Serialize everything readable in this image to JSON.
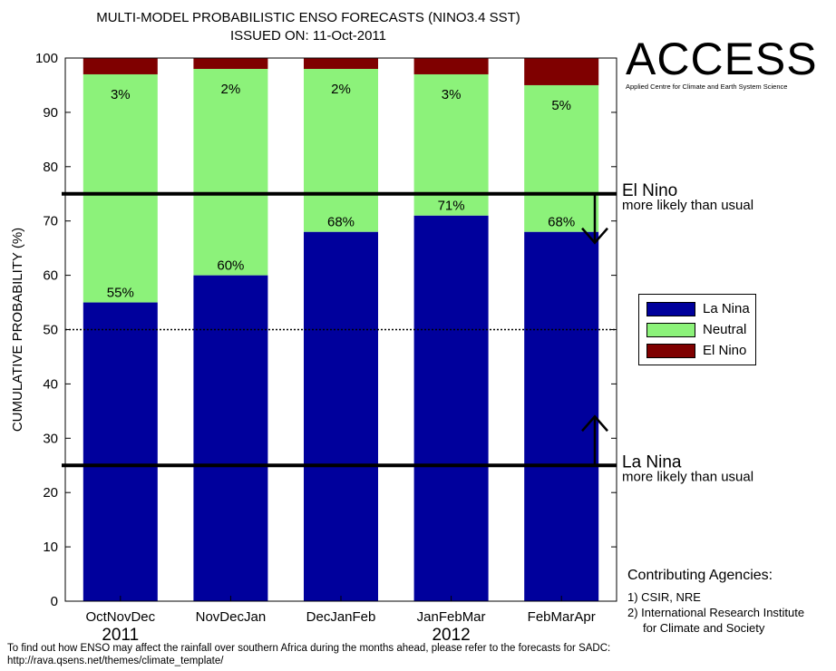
{
  "title_line1": "MULTI-MODEL PROBABILISTIC ENSO FORECASTS (NINO3.4 SST)",
  "title_line2": "ISSUED ON: 11-Oct-2011",
  "logo": {
    "name": "ACCESS",
    "subtitle": "Applied Centre for Climate and Earth System Science"
  },
  "chart_data": {
    "type": "bar",
    "stacked": true,
    "ylabel": "CUMULATIVE PROBABILITY (%)",
    "xlabel": "",
    "ylim": [
      0,
      100
    ],
    "yticks": [
      0,
      10,
      20,
      30,
      40,
      50,
      60,
      70,
      80,
      90,
      100
    ],
    "categories": [
      "OctNovDec",
      "NovDecJan",
      "DecJanFeb",
      "JanFebMar",
      "FebMarApr"
    ],
    "year_labels": [
      {
        "text": "2011",
        "category_index": 0
      },
      {
        "text": "2012",
        "category_index": 3
      }
    ],
    "series": [
      {
        "name": "La Nina",
        "color": "#00009c",
        "values": [
          55,
          60,
          68,
          71,
          68
        ]
      },
      {
        "name": "Neutral",
        "color": "#8cf27a",
        "values": [
          42,
          38,
          30,
          26,
          27
        ]
      },
      {
        "name": "El Nino",
        "color": "#7f0000",
        "values": [
          3,
          2,
          2,
          3,
          5
        ]
      }
    ],
    "bar_labels": {
      "la_nina": [
        "55%",
        "60%",
        "68%",
        "71%",
        "68%"
      ],
      "el_nino": [
        "3%",
        "2%",
        "2%",
        "3%",
        "5%"
      ]
    },
    "reference_lines": [
      {
        "value": 75,
        "style": "thick",
        "label": "El Nino",
        "sublabel": "more likely than usual",
        "arrow": "down"
      },
      {
        "value": 50,
        "style": "dotted"
      },
      {
        "value": 25,
        "style": "thick",
        "label": "La Nina",
        "sublabel": "more likely than usual",
        "arrow": "up"
      }
    ],
    "legend_position": "right"
  },
  "legend": [
    {
      "label": "La Nina",
      "color": "#00009c"
    },
    {
      "label": "Neutral",
      "color": "#8cf27a"
    },
    {
      "label": "El Nino",
      "color": "#7f0000"
    }
  ],
  "agencies": {
    "heading": "Contributing Agencies:",
    "item1": "1) CSIR, NRE",
    "item2_line1": "2) International Research Institute",
    "item2_line2": "for Climate and Society"
  },
  "footer": {
    "line1": "To find out how ENSO may affect the rainfall over southern Africa during the months ahead, please refer to the forecasts for SADC:",
    "line2": "http://rava.qsens.net/themes/climate_template/"
  }
}
